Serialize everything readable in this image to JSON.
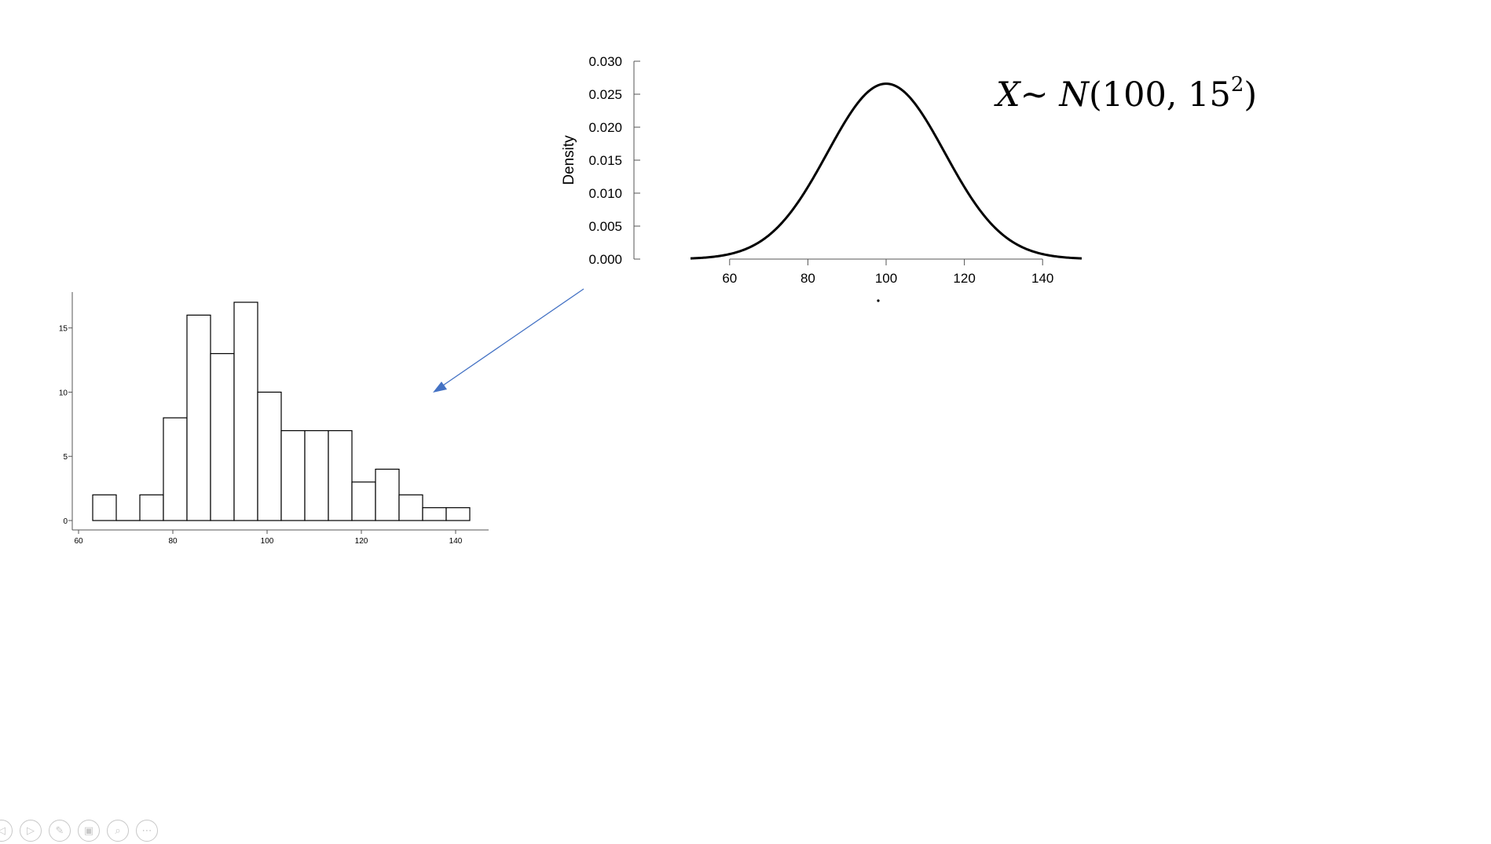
{
  "formula": {
    "var_x": "X",
    "tilde": "~",
    "var_n": "N",
    "open": "(",
    "params": "100, 15",
    "exponent": "2",
    "close": ")"
  },
  "chart_data": [
    {
      "type": "line",
      "title": "",
      "xlabel": "",
      "ylabel": "Density",
      "distribution": "normal",
      "mean": 100,
      "sd": 15,
      "x_range": [
        50,
        150
      ],
      "xlim": [
        50,
        150
      ],
      "ylim": [
        0,
        0.03
      ],
      "x_ticks": [
        60,
        80,
        100,
        120,
        140
      ],
      "x_tick_labels": [
        "60",
        "80",
        "100",
        "120",
        "140"
      ],
      "y_ticks": [
        0,
        0.005,
        0.01,
        0.015,
        0.02,
        0.025,
        0.03
      ],
      "y_tick_labels": [
        "0.000",
        "0.005",
        "0.010",
        "0.015",
        "0.020",
        "0.025",
        "0.030"
      ],
      "grid": false,
      "line_color": "#000000"
    },
    {
      "type": "bar",
      "title": "",
      "xlabel": "",
      "ylabel": "",
      "bin_width": 5,
      "bin_starts": [
        63,
        68,
        73,
        78,
        83,
        88,
        93,
        98,
        103,
        108,
        113,
        118,
        123,
        128,
        133,
        138
      ],
      "values": [
        2,
        0,
        2,
        8,
        16,
        13,
        17,
        10,
        7,
        7,
        7,
        3,
        4,
        2,
        1,
        1
      ],
      "xlim": [
        60,
        147
      ],
      "ylim": [
        -1,
        18
      ],
      "x_ticks": [
        60,
        80,
        100,
        120,
        140
      ],
      "x_tick_labels": [
        "60",
        "80",
        "100",
        "120",
        "140"
      ],
      "y_ticks": [
        0,
        5,
        10,
        15
      ],
      "y_tick_labels": [
        "0",
        "5",
        "10",
        "15"
      ],
      "grid": false,
      "bar_fill": "#ffffff",
      "bar_stroke": "#000000"
    }
  ],
  "arrow": {
    "color": "#4472c4"
  },
  "controls": [
    {
      "name": "previous-slide-button",
      "icon": "left-arrow-icon",
      "glyph": "◁"
    },
    {
      "name": "next-slide-button",
      "icon": "right-arrow-icon",
      "glyph": "▷"
    },
    {
      "name": "pen-tool-button",
      "icon": "pen-icon",
      "glyph": "✎"
    },
    {
      "name": "see-all-slides-button",
      "icon": "slides-icon",
      "glyph": "▣"
    },
    {
      "name": "zoom-button",
      "icon": "magnifier-icon",
      "glyph": "⌕"
    },
    {
      "name": "more-options-button",
      "icon": "more-icon",
      "glyph": "⋯"
    }
  ]
}
